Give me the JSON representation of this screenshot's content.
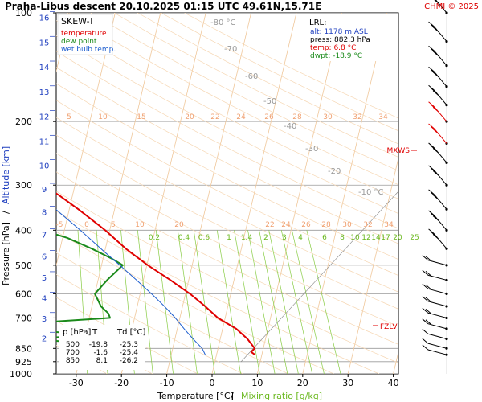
{
  "header": {
    "title": "Praha-Libus   descent   20.10.2025 01:15 UTC   49.61N,15.71E",
    "copyright": "CHMI © 2025"
  },
  "legend": {
    "title": "SKEW-T",
    "temperature": "temperature",
    "dew_point": "dew point",
    "wet_bulb": "wet bulb temp."
  },
  "lrl": {
    "title": "LRL:",
    "alt": "alt: 1178 m ASL",
    "press": "press: 882.3 hPa",
    "temp": "temp: 6.8 °C",
    "dwpt": "dwpt: -18.9 °C"
  },
  "level_table": {
    "headers": [
      "p [hPa]",
      "T",
      "Td [°C]"
    ],
    "rows": [
      [
        "500",
        "-19.8",
        "-25.3"
      ],
      [
        "700",
        "-1.6",
        "-25.4"
      ],
      [
        "850",
        "8.1",
        "-26.2"
      ]
    ]
  },
  "markers": {
    "mxws": "MXWS",
    "fzlv": "FZLV"
  },
  "colors": {
    "temperature": "#e00000",
    "dew_point": "#1a8a1a",
    "wet_bulb": "#1f5fcf",
    "isotherm": "#f0c79a",
    "mixing_ratio": "#88cc44",
    "axis_label_blue": "#1f3fbf"
  },
  "chart_data": {
    "type": "line",
    "title": "SKEW-T",
    "xlabel": "Temperature [°C]",
    "xlabel2": "Mixing ratio [g/kg]",
    "ylabel": "Pressure [hPa]",
    "ylabel2": "Altitude [km]",
    "xlim": [
      -35,
      50
    ],
    "ylim": [
      1000,
      100
    ],
    "y_scale": "log",
    "grid": true,
    "x_ticks": [
      "-30",
      "-20",
      "-10",
      "0",
      "10",
      "20",
      "30",
      "40"
    ],
    "pressure_ticks": [
      "100",
      "200",
      "300",
      "400",
      "500",
      "600",
      "700",
      "850",
      "925",
      "1000"
    ],
    "altitude_ticks": [
      "16",
      "15",
      "14",
      "13",
      "12",
      "11",
      "10",
      "9",
      "8",
      "7",
      "6",
      "5",
      "4",
      "3",
      "2"
    ],
    "isotherm_labels_top": [
      "-80 °C",
      "-70",
      "-60",
      "-50",
      "-40",
      "-30",
      "-20",
      "-10 °C"
    ],
    "mixing_ratio_labels_upper": [
      "5",
      "10",
      "15",
      "20",
      "22",
      "24",
      "26",
      "28",
      "30",
      "32",
      "34"
    ],
    "mixing_ratio_labels_mid": [
      "-10",
      "-5",
      "0",
      "5",
      "10",
      "20",
      "22",
      "24",
      "26",
      "28",
      "30",
      "32",
      "34"
    ],
    "mixing_ratio_labels_green": [
      "0.2",
      "0.4",
      "0.6",
      "1",
      "1.4",
      "2",
      "3",
      "4",
      "6",
      "8",
      "10",
      "12",
      "14",
      "17",
      "20",
      "25"
    ],
    "series": [
      {
        "name": "temperature",
        "points": [
          [
            885,
            8.5
          ],
          [
            870,
            7.5
          ],
          [
            850,
            8.1
          ],
          [
            800,
            6
          ],
          [
            750,
            3
          ],
          [
            700,
            -1.6
          ],
          [
            650,
            -5
          ],
          [
            600,
            -9
          ],
          [
            550,
            -14
          ],
          [
            500,
            -19.8
          ],
          [
            450,
            -25.5
          ],
          [
            400,
            -31
          ],
          [
            350,
            -38
          ],
          [
            320,
            -43
          ],
          [
            300,
            -47
          ],
          [
            280,
            -51
          ],
          [
            250,
            -55
          ],
          [
            230,
            -57
          ],
          [
            215,
            -59
          ],
          [
            200,
            -59
          ],
          [
            180,
            -58
          ],
          [
            160,
            -58
          ],
          [
            145,
            -57
          ],
          [
            130,
            -56
          ],
          [
            115,
            -56
          ],
          [
            100,
            -56
          ]
        ]
      },
      {
        "name": "dew point",
        "points": [
          [
            885,
            -19
          ],
          [
            870,
            -20
          ],
          [
            850,
            -26.2
          ],
          [
            830,
            -25
          ],
          [
            800,
            -42
          ],
          [
            780,
            -28
          ],
          [
            760,
            -40
          ],
          [
            740,
            -45
          ],
          [
            720,
            -40
          ],
          [
            700,
            -25.4
          ],
          [
            680,
            -26
          ],
          [
            650,
            -28
          ],
          [
            600,
            -30
          ],
          [
            550,
            -28
          ],
          [
            500,
            -25.3
          ],
          [
            480,
            -28
          ],
          [
            450,
            -33
          ],
          [
            420,
            -39
          ],
          [
            400,
            -45
          ],
          [
            380,
            -60
          ],
          [
            350,
            -58
          ],
          [
            330,
            -60
          ],
          [
            300,
            -65
          ],
          [
            280,
            -66
          ],
          [
            250,
            -70
          ],
          [
            220,
            -74
          ],
          [
            200,
            -76
          ],
          [
            180,
            -79
          ],
          [
            160,
            -82
          ],
          [
            140,
            -85
          ],
          [
            120,
            -87
          ],
          [
            100,
            -90
          ]
        ]
      },
      {
        "name": "wet bulb temp.",
        "points": [
          [
            885,
            -2.5
          ],
          [
            850,
            -3.5
          ],
          [
            800,
            -6
          ],
          [
            750,
            -8.5
          ],
          [
            700,
            -11
          ],
          [
            650,
            -14
          ],
          [
            600,
            -17.5
          ],
          [
            550,
            -21.5
          ],
          [
            500,
            -26
          ],
          [
            450,
            -31
          ],
          [
            400,
            -36.5
          ],
          [
            350,
            -43
          ],
          [
            320,
            -47
          ],
          [
            300,
            -50
          ]
        ]
      }
    ],
    "wind_barbs_pressure": [
      100,
      120,
      140,
      160,
      180,
      200,
      230,
      260,
      300,
      350,
      400,
      450,
      500,
      550,
      600,
      650,
      700,
      750,
      800,
      850,
      885
    ]
  }
}
